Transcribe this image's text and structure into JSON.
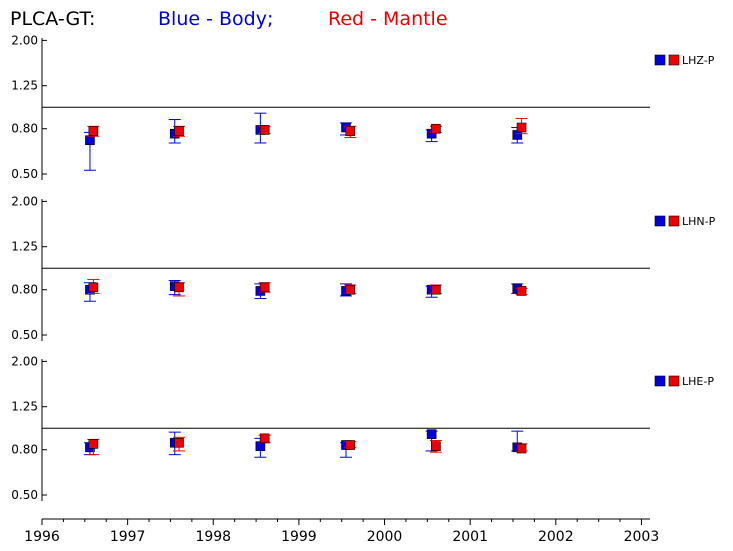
{
  "title": {
    "station": "PLCA-GT:",
    "blue_text": "Blue - Body;",
    "red_text": "Red - Mantle",
    "blue_color": "#0000dd",
    "red_color": "#ee0000"
  },
  "chart_data": {
    "type": "scatter",
    "x_ticks": [
      "1996",
      "1997",
      "1998",
      "1999",
      "2000",
      "2001",
      "2002",
      "2003"
    ],
    "xlim": [
      1996,
      2003.1
    ],
    "y_scale": "log",
    "y_ticks": [
      "0.50",
      "0.80",
      "1.25",
      "2.00"
    ],
    "reference_line": 1.0,
    "panels": [
      {
        "name": "LHZ-P",
        "ylim": [
          0.47,
          2.05
        ],
        "series": [
          {
            "name": "Body",
            "color": "#0000dd",
            "x": [
              1996.56,
              1997.55,
              1998.55,
              1999.55,
              2000.55,
              2001.55
            ],
            "y": [
              0.71,
              0.76,
              0.79,
              0.81,
              0.76,
              0.75
            ],
            "lo": [
              0.52,
              0.69,
              0.69,
              0.75,
              0.7,
              0.69
            ],
            "hi": [
              0.77,
              0.88,
              0.94,
              0.85,
              0.79,
              0.81
            ]
          },
          {
            "name": "Mantle",
            "color": "#ee0000",
            "x": [
              1996.6,
              1997.6,
              1998.6,
              1999.6,
              2000.6,
              2001.6
            ],
            "y": [
              0.78,
              0.78,
              0.79,
              0.78,
              0.8,
              0.81
            ],
            "lo": [
              0.74,
              0.74,
              0.76,
              0.73,
              0.77,
              0.76
            ],
            "hi": [
              0.82,
              0.82,
              0.82,
              0.82,
              0.82,
              0.89
            ]
          }
        ]
      },
      {
        "name": "LHN-P",
        "ylim": [
          0.47,
          2.05
        ],
        "series": [
          {
            "name": "Body",
            "color": "#0000dd",
            "x": [
              1996.56,
              1997.55,
              1998.55,
              1999.55,
              2000.55,
              2001.55
            ],
            "y": [
              0.8,
              0.83,
              0.79,
              0.79,
              0.8,
              0.81
            ],
            "lo": [
              0.71,
              0.76,
              0.73,
              0.75,
              0.74,
              0.77
            ],
            "hi": [
              0.86,
              0.88,
              0.85,
              0.85,
              0.83,
              0.85
            ]
          },
          {
            "name": "Mantle",
            "color": "#ee0000",
            "x": [
              1996.6,
              1997.6,
              1998.6,
              1999.6,
              2000.6,
              2001.6
            ],
            "y": [
              0.82,
              0.82,
              0.82,
              0.8,
              0.8,
              0.79
            ],
            "lo": [
              0.77,
              0.75,
              0.78,
              0.77,
              0.77,
              0.76
            ],
            "hi": [
              0.89,
              0.86,
              0.86,
              0.84,
              0.84,
              0.81
            ]
          }
        ]
      },
      {
        "name": "LHE-P",
        "ylim": [
          0.47,
          2.05
        ],
        "series": [
          {
            "name": "Body",
            "color": "#0000dd",
            "x": [
              1996.56,
              1997.55,
              1998.55,
              1999.55,
              2000.55,
              2001.55
            ],
            "y": [
              0.82,
              0.86,
              0.83,
              0.84,
              0.94,
              0.82
            ],
            "lo": [
              0.76,
              0.76,
              0.74,
              0.74,
              0.79,
              0.79
            ],
            "hi": [
              0.86,
              0.96,
              0.9,
              0.86,
              0.97,
              0.97
            ]
          },
          {
            "name": "Mantle",
            "color": "#ee0000",
            "x": [
              1996.6,
              1997.6,
              1998.6,
              1999.6,
              2000.6,
              2001.6
            ],
            "y": [
              0.85,
              0.86,
              0.9,
              0.84,
              0.83,
              0.81
            ],
            "lo": [
              0.76,
              0.79,
              0.86,
              0.82,
              0.78,
              0.79
            ],
            "hi": [
              0.89,
              0.91,
              0.93,
              0.87,
              0.88,
              0.85
            ]
          }
        ]
      }
    ]
  }
}
